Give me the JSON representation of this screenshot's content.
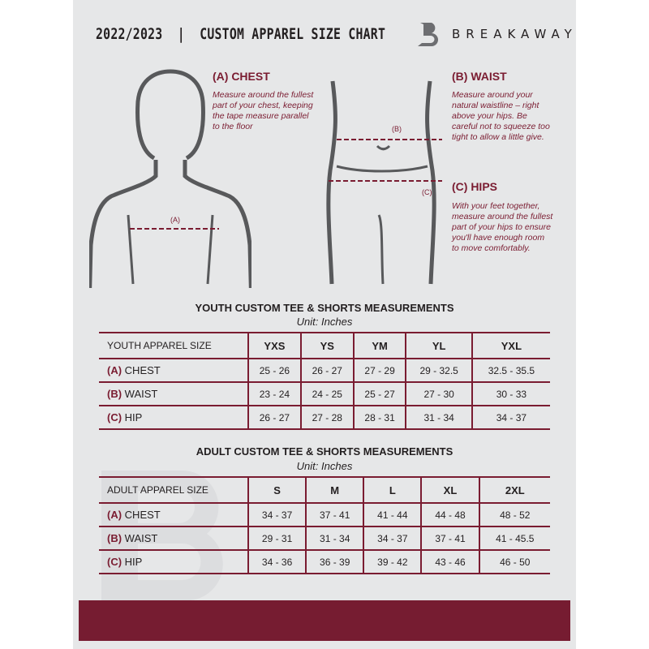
{
  "header": {
    "title": "2022/2023  |  CUSTOM APPAREL SIZE CHART",
    "brand": "BREAKAWAY"
  },
  "guide": {
    "chest": {
      "heading": "(A) CHEST",
      "text": "Measure around the fullest part of your chest, keeping the tape measure parallel to the floor",
      "marker": "(A)"
    },
    "waist": {
      "heading": "(B) WAIST",
      "text": "Measure around your natural waistline – right above your hips. Be careful not to squeeze too tight to allow a little give.",
      "marker": "(B)"
    },
    "hips": {
      "heading": "(C) HIPS",
      "text": "With your feet together, measure around the fullest part of your hips to ensure you'll have enough room to move comfortably.",
      "marker": "(C)"
    }
  },
  "youth": {
    "title": "YOUTH CUSTOM TEE & SHORTS MEASUREMENTS",
    "unit": "Unit: Inches",
    "size_label": "YOUTH APPAREL SIZE",
    "sizes": [
      "YXS",
      "YS",
      "YM",
      "YL",
      "YXL"
    ],
    "rows": [
      {
        "letter": "(A)",
        "label": "CHEST",
        "values": [
          "25 - 26",
          "26 - 27",
          "27 - 29",
          "29 - 32.5",
          "32.5 - 35.5"
        ]
      },
      {
        "letter": "(B)",
        "label": "WAIST",
        "values": [
          "23 - 24",
          "24 - 25",
          "25 - 27",
          "27 - 30",
          "30 - 33"
        ]
      },
      {
        "letter": "(C)",
        "label": "HIP",
        "values": [
          "26 - 27",
          "27 - 28",
          "28 - 31",
          "31 - 34",
          "34 - 37"
        ]
      }
    ]
  },
  "adult": {
    "title": "ADULT CUSTOM TEE & SHORTS MEASUREMENTS",
    "unit": "Unit: Inches",
    "size_label": "ADULT APPAREL SIZE",
    "sizes": [
      "S",
      "M",
      "L",
      "XL",
      "2XL"
    ],
    "rows": [
      {
        "letter": "(A)",
        "label": "CHEST",
        "values": [
          "34 - 37",
          "37 - 41",
          "41 - 44",
          "44 - 48",
          "48 - 52"
        ]
      },
      {
        "letter": "(B)",
        "label": "WAIST",
        "values": [
          "29 - 31",
          "31 - 34",
          "34 - 37",
          "37 - 41",
          "41 - 45.5"
        ]
      },
      {
        "letter": "(C)",
        "label": "HIP",
        "values": [
          "34 - 36",
          "36 - 39",
          "39 - 42",
          "43 - 46",
          "46 - 50"
        ]
      }
    ]
  },
  "colors": {
    "accent": "#7a1c31",
    "panel": "#e6e7e8"
  }
}
